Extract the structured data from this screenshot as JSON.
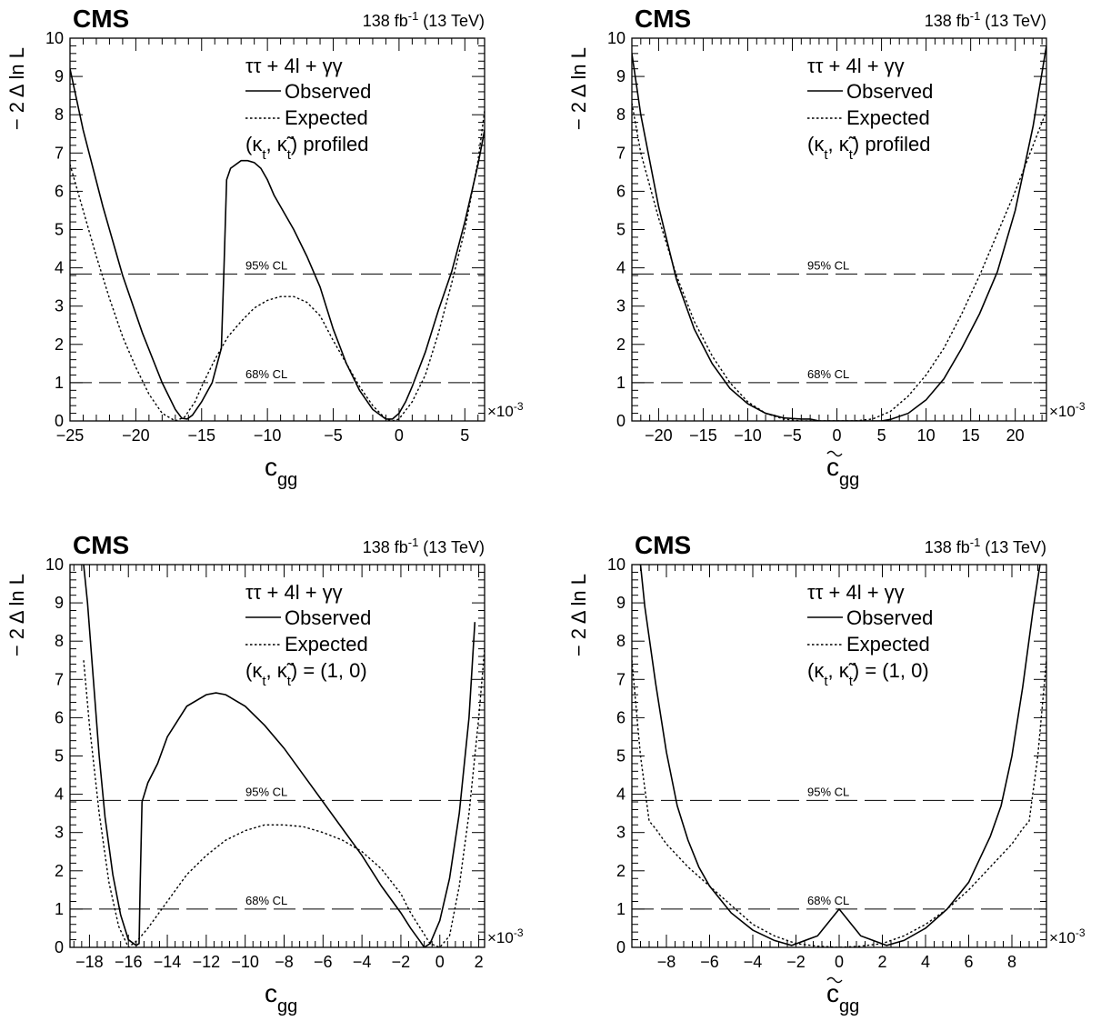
{
  "figure": {
    "experiment": "CMS",
    "luminosity": "138 fb",
    "luminosity_exp": "-1",
    "energy": "(13 TeV)",
    "multiplier": "×10",
    "multiplier_exp": "-3",
    "cl_labels": {
      "cl68": "68% CL",
      "cl95": "95% CL"
    },
    "colors": {
      "lines": "#000000",
      "background": "#ffffff"
    }
  },
  "chart_data": [
    {
      "type": "line",
      "xlabel": "c",
      "xlabel_sub": "gg",
      "xlabel_tilde": false,
      "ylabel": "− 2 Δ ln L",
      "xlim": [
        -25,
        6.5
      ],
      "ylim": [
        0,
        10
      ],
      "xticks": [
        -25,
        -20,
        -15,
        -10,
        -5,
        0,
        5
      ],
      "yticks": [
        0,
        1,
        2,
        3,
        4,
        5,
        6,
        7,
        8,
        9,
        10
      ],
      "legend": {
        "process": "ττ + 4l + γγ",
        "observed": "Observed",
        "expected": "Expected",
        "condition": "(κt, κ̃t) profiled"
      },
      "cl_levels": [
        1.0,
        3.84
      ],
      "series": [
        {
          "name": "Observed",
          "style": "solid",
          "x": [
            -25.0,
            -24.0,
            -22.5,
            -21.0,
            -19.5,
            -18.0,
            -17.0,
            -16.5,
            -16.1,
            -15.7,
            -15.0,
            -14.2,
            -13.5,
            -13.3,
            -13.1,
            -12.8,
            -12.0,
            -11.5,
            -11.0,
            -10.5,
            -10.0,
            -9.5,
            -9.0,
            -8.0,
            -7.0,
            -6.0,
            -5.0,
            -4.0,
            -3.0,
            -2.0,
            -1.0,
            -0.5,
            0.0,
            0.5,
            1.0,
            2.0,
            3.0,
            4.0,
            5.0,
            6.0,
            6.5
          ],
          "y": [
            9.2,
            7.6,
            5.6,
            3.8,
            2.3,
            1.0,
            0.3,
            0.07,
            0.05,
            0.15,
            0.5,
            1.0,
            1.9,
            4.0,
            6.3,
            6.6,
            6.8,
            6.8,
            6.75,
            6.6,
            6.3,
            5.9,
            5.6,
            5.0,
            4.3,
            3.5,
            2.4,
            1.5,
            0.8,
            0.3,
            0.05,
            0.05,
            0.2,
            0.5,
            0.9,
            1.8,
            2.9,
            3.9,
            5.2,
            6.7,
            7.6
          ]
        },
        {
          "name": "Expected",
          "style": "dotted",
          "x": [
            -25.0,
            -24.0,
            -23.0,
            -22.0,
            -21.0,
            -20.0,
            -19.0,
            -18.0,
            -17.0,
            -16.3,
            -15.5,
            -15.0,
            -14.0,
            -13.0,
            -12.0,
            -11.0,
            -10.0,
            -9.0,
            -8.0,
            -7.0,
            -6.0,
            -5.0,
            -4.0,
            -3.0,
            -2.0,
            -1.0,
            -0.5,
            0.0,
            1.0,
            2.0,
            3.0,
            4.0,
            5.0,
            6.0,
            6.5
          ],
          "y": [
            6.7,
            5.5,
            4.3,
            3.2,
            2.2,
            1.4,
            0.7,
            0.2,
            0.0,
            0.1,
            0.5,
            0.9,
            1.6,
            2.2,
            2.6,
            2.95,
            3.15,
            3.25,
            3.25,
            3.1,
            2.75,
            2.1,
            1.5,
            0.9,
            0.4,
            0.05,
            0.0,
            0.05,
            0.5,
            1.2,
            2.3,
            3.6,
            5.0,
            6.8,
            8.1
          ]
        }
      ]
    },
    {
      "type": "line",
      "xlabel": "c",
      "xlabel_sub": "gg",
      "xlabel_tilde": true,
      "ylabel": "− 2 Δ ln L",
      "xlim": [
        -23,
        23.5
      ],
      "ylim": [
        0,
        10
      ],
      "xticks": [
        -20,
        -15,
        -10,
        -5,
        0,
        5,
        10,
        15,
        20
      ],
      "yticks": [
        0,
        1,
        2,
        3,
        4,
        5,
        6,
        7,
        8,
        9,
        10
      ],
      "legend": {
        "process": "ττ + 4l + γγ",
        "observed": "Observed",
        "expected": "Expected",
        "condition": "(κt, κ̃t) profiled"
      },
      "cl_levels": [
        1.0,
        3.84
      ],
      "series": [
        {
          "name": "Observed",
          "style": "solid",
          "x": [
            -23.0,
            -22.0,
            -20.0,
            -18.0,
            -16.0,
            -14.0,
            -12.0,
            -10.0,
            -8.0,
            -6.0,
            -4.0,
            -3.0,
            -2.0,
            0.0,
            2.0,
            4.0,
            5.0,
            6.0,
            8.0,
            10.0,
            12.0,
            14.0,
            16.0,
            18.0,
            20.0,
            22.0,
            23.5
          ],
          "y": [
            9.6,
            8.0,
            5.6,
            3.7,
            2.4,
            1.5,
            0.85,
            0.45,
            0.2,
            0.08,
            0.05,
            0.05,
            0.0,
            0.0,
            0.0,
            0.0,
            0.0,
            0.04,
            0.2,
            0.55,
            1.1,
            1.9,
            2.8,
            3.9,
            5.5,
            7.7,
            9.8
          ]
        },
        {
          "name": "Expected",
          "style": "dotted",
          "x": [
            -23.0,
            -22.0,
            -20.0,
            -18.0,
            -16.0,
            -14.0,
            -12.0,
            -10.0,
            -8.0,
            -6.0,
            -4.0,
            -2.0,
            0.0,
            2.0,
            4.0,
            6.0,
            8.0,
            10.0,
            12.0,
            14.0,
            16.0,
            18.0,
            20.0,
            22.0,
            23.5
          ],
          "y": [
            8.3,
            7.0,
            5.3,
            3.8,
            2.6,
            1.7,
            1.0,
            0.5,
            0.2,
            0.05,
            0.0,
            0.0,
            0.0,
            0.0,
            0.05,
            0.25,
            0.65,
            1.2,
            1.9,
            2.8,
            3.8,
            4.9,
            6.0,
            7.2,
            8.1
          ]
        }
      ]
    },
    {
      "type": "line",
      "xlabel": "c",
      "xlabel_sub": "gg",
      "xlabel_tilde": false,
      "ylabel": "− 2 Δ ln L",
      "xlim": [
        -19,
        2.3
      ],
      "ylim": [
        0,
        10
      ],
      "xticks": [
        -18,
        -16,
        -14,
        -12,
        -10,
        -8,
        -6,
        -4,
        -2,
        0,
        2
      ],
      "yticks": [
        0,
        1,
        2,
        3,
        4,
        5,
        6,
        7,
        8,
        9,
        10
      ],
      "legend": {
        "process": "ττ + 4l + γγ",
        "observed": "Observed",
        "expected": "Expected",
        "condition": "(κt, κ̃t) = (1, 0)"
      },
      "cl_levels": [
        1.0,
        3.84
      ],
      "series": [
        {
          "name": "Observed",
          "style": "solid",
          "x": [
            -18.3,
            -18.1,
            -17.8,
            -17.5,
            -17.2,
            -16.8,
            -16.4,
            -16.0,
            -15.6,
            -15.45,
            -15.4,
            -15.3,
            -15.0,
            -14.5,
            -14.0,
            -13.0,
            -12.0,
            -11.5,
            -11.0,
            -10.0,
            -9.0,
            -8.0,
            -7.0,
            -6.0,
            -5.0,
            -4.0,
            -3.0,
            -2.0,
            -1.5,
            -1.0,
            -0.8,
            -0.5,
            0.0,
            0.5,
            1.0,
            1.5,
            1.8
          ],
          "y": [
            10.0,
            9.0,
            7.0,
            5.0,
            3.4,
            1.9,
            0.85,
            0.2,
            0.05,
            0.1,
            1.5,
            3.8,
            4.3,
            4.8,
            5.5,
            6.3,
            6.6,
            6.65,
            6.6,
            6.3,
            5.8,
            5.2,
            4.5,
            3.8,
            3.1,
            2.4,
            1.6,
            0.9,
            0.5,
            0.15,
            0.0,
            0.1,
            0.7,
            1.8,
            3.5,
            6.0,
            8.5
          ]
        },
        {
          "name": "Expected",
          "style": "dotted",
          "x": [
            -18.3,
            -18.0,
            -17.5,
            -17.0,
            -16.5,
            -16.0,
            -15.5,
            -15.0,
            -14.0,
            -13.0,
            -12.0,
            -11.0,
            -10.0,
            -9.0,
            -8.0,
            -7.0,
            -6.0,
            -5.0,
            -4.0,
            -3.0,
            -2.0,
            -1.5,
            -1.0,
            -0.5,
            0.0,
            0.5,
            1.0,
            1.5,
            2.0,
            2.3
          ],
          "y": [
            7.5,
            5.8,
            3.5,
            1.7,
            0.55,
            0.0,
            0.2,
            0.5,
            1.2,
            1.9,
            2.4,
            2.8,
            3.05,
            3.2,
            3.2,
            3.15,
            3.0,
            2.8,
            2.5,
            2.05,
            1.4,
            0.9,
            0.5,
            0.1,
            0.0,
            0.3,
            1.6,
            3.5,
            6.0,
            7.8
          ]
        }
      ]
    },
    {
      "type": "line",
      "xlabel": "c",
      "xlabel_sub": "gg",
      "xlabel_tilde": true,
      "ylabel": "− 2 Δ ln L",
      "xlim": [
        -9.6,
        9.6
      ],
      "ylim": [
        0,
        10
      ],
      "xticks": [
        -8,
        -6,
        -4,
        -2,
        0,
        2,
        4,
        6,
        8
      ],
      "yticks": [
        0,
        1,
        2,
        3,
        4,
        5,
        6,
        7,
        8,
        9,
        10
      ],
      "legend": {
        "process": "ττ + 4l + γγ",
        "observed": "Observed",
        "expected": "Expected",
        "condition": "(κt, κ̃t) = (1, 0)"
      },
      "cl_levels": [
        1.0,
        3.84
      ],
      "series": [
        {
          "name": "Observed",
          "style": "solid",
          "x": [
            -9.2,
            -9.0,
            -8.5,
            -8.0,
            -7.5,
            -7.0,
            -6.5,
            -6.0,
            -5.0,
            -4.0,
            -3.0,
            -2.2,
            -1.0,
            0.0,
            1.0,
            2.2,
            3.0,
            4.0,
            5.0,
            6.0,
            6.5,
            7.0,
            7.5,
            8.0,
            8.5,
            9.0,
            9.3
          ],
          "y": [
            10.0,
            8.9,
            6.9,
            5.1,
            3.7,
            2.8,
            2.1,
            1.6,
            0.9,
            0.45,
            0.18,
            0.05,
            0.3,
            1.0,
            0.3,
            0.05,
            0.18,
            0.5,
            1.0,
            1.7,
            2.3,
            2.9,
            3.7,
            5.0,
            6.8,
            8.9,
            10.0
          ]
        },
        {
          "name": "Expected",
          "style": "dotted",
          "x": [
            -9.6,
            -9.2,
            -8.8,
            -8.5,
            -8.0,
            -7.0,
            -6.0,
            -5.0,
            -4.0,
            -3.0,
            -2.0,
            -1.0,
            0.0,
            1.0,
            2.0,
            3.0,
            4.0,
            5.0,
            6.0,
            7.0,
            8.0,
            8.5,
            8.8,
            9.2,
            9.6
          ],
          "y": [
            7.5,
            5.0,
            3.3,
            3.1,
            2.7,
            2.1,
            1.6,
            1.1,
            0.6,
            0.3,
            0.1,
            0.03,
            0.0,
            0.03,
            0.1,
            0.3,
            0.6,
            1.0,
            1.5,
            2.1,
            2.7,
            3.1,
            3.3,
            5.0,
            7.5
          ]
        }
      ]
    }
  ]
}
